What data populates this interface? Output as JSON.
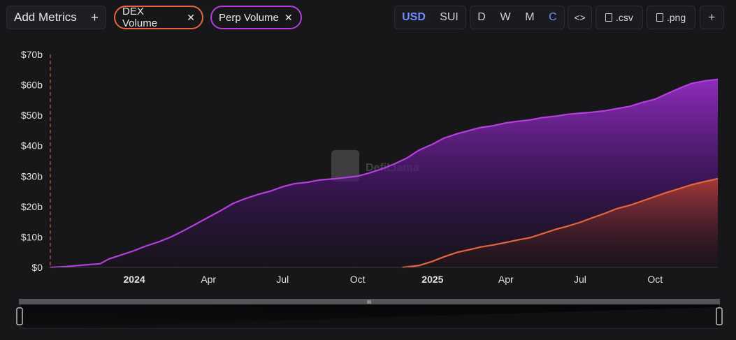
{
  "toolbar": {
    "add_metrics_label": "Add Metrics",
    "add_icon": "+",
    "pills": [
      {
        "label": "DEX Volume",
        "color": "#e5663d"
      },
      {
        "label": "Perp Volume",
        "color": "#b43fdc"
      }
    ],
    "pill_close_icon": "✕",
    "currency": [
      "USD",
      "SUI"
    ],
    "currency_selected": "USD",
    "granularity": [
      "D",
      "W",
      "M",
      "C"
    ],
    "granularity_selected": "C",
    "embed_icon": "<>",
    "csv_label": ".csv",
    "png_label": ".png",
    "more_icon": "+"
  },
  "watermark": "DefiLlama",
  "range_handle_icon": "III",
  "chart_data": {
    "type": "area",
    "title": "",
    "xlabel": "",
    "ylabel": "",
    "ylim": [
      0,
      70
    ],
    "y_ticks": [
      "$0",
      "$10b",
      "$20b",
      "$30b",
      "$40b",
      "$50b",
      "$60b",
      "$70b"
    ],
    "x_ticks": [
      {
        "date": "2024-01-01",
        "label": "2024",
        "bold": true
      },
      {
        "date": "2024-04-01",
        "label": "Apr",
        "bold": false
      },
      {
        "date": "2024-07-01",
        "label": "Jul",
        "bold": false
      },
      {
        "date": "2024-10-01",
        "label": "Oct",
        "bold": false
      },
      {
        "date": "2025-01-01",
        "label": "2025",
        "bold": true
      },
      {
        "date": "2025-04-01",
        "label": "Apr",
        "bold": false
      },
      {
        "date": "2025-07-01",
        "label": "Jul",
        "bold": false
      },
      {
        "date": "2025-10-01",
        "label": "Oct",
        "bold": false
      }
    ],
    "x_range": [
      "2023-09-20",
      "2025-12-17"
    ],
    "series": [
      {
        "name": "Perp Volume",
        "color": "#b43fdc",
        "points": [
          [
            "2023-09-20",
            0
          ],
          [
            "2023-10-10",
            0.3
          ],
          [
            "2023-11-01",
            0.8
          ],
          [
            "2023-11-20",
            1.2
          ],
          [
            "2023-12-01",
            2.8
          ],
          [
            "2023-12-15",
            4
          ],
          [
            "2024-01-01",
            5.5
          ],
          [
            "2024-01-15",
            7
          ],
          [
            "2024-02-01",
            8.5
          ],
          [
            "2024-02-15",
            10
          ],
          [
            "2024-03-01",
            12
          ],
          [
            "2024-03-15",
            14
          ],
          [
            "2024-04-01",
            16.5
          ],
          [
            "2024-04-15",
            18.5
          ],
          [
            "2024-05-01",
            21
          ],
          [
            "2024-05-15",
            22.5
          ],
          [
            "2024-06-01",
            24
          ],
          [
            "2024-06-15",
            25
          ],
          [
            "2024-07-01",
            26.5
          ],
          [
            "2024-07-15",
            27.5
          ],
          [
            "2024-08-01",
            28
          ],
          [
            "2024-08-15",
            28.7
          ],
          [
            "2024-09-01",
            29.1
          ],
          [
            "2024-09-15",
            29.5
          ],
          [
            "2024-10-01",
            30
          ],
          [
            "2024-10-15",
            31
          ],
          [
            "2024-11-01",
            32.5
          ],
          [
            "2024-11-15",
            34
          ],
          [
            "2024-12-01",
            36
          ],
          [
            "2024-12-15",
            38.5
          ],
          [
            "2025-01-01",
            40.5
          ],
          [
            "2025-01-15",
            42.5
          ],
          [
            "2025-02-01",
            44
          ],
          [
            "2025-02-15",
            45
          ],
          [
            "2025-03-01",
            46
          ],
          [
            "2025-03-15",
            46.5
          ],
          [
            "2025-04-01",
            47.5
          ],
          [
            "2025-04-15",
            48
          ],
          [
            "2025-05-01",
            48.5
          ],
          [
            "2025-05-15",
            49.2
          ],
          [
            "2025-06-01",
            49.7
          ],
          [
            "2025-06-15",
            50.3
          ],
          [
            "2025-07-01",
            50.7
          ],
          [
            "2025-07-15",
            51
          ],
          [
            "2025-08-01",
            51.5
          ],
          [
            "2025-08-15",
            52.2
          ],
          [
            "2025-09-01",
            53
          ],
          [
            "2025-09-15",
            54.2
          ],
          [
            "2025-10-01",
            55.3
          ],
          [
            "2025-10-15",
            57
          ],
          [
            "2025-11-01",
            59
          ],
          [
            "2025-11-15",
            60.5
          ],
          [
            "2025-12-01",
            61.3
          ],
          [
            "2025-12-17",
            61.8
          ]
        ]
      },
      {
        "name": "DEX Volume",
        "color": "#e5663d",
        "points": [
          [
            "2024-11-25",
            0
          ],
          [
            "2024-12-15",
            0.6
          ],
          [
            "2025-01-01",
            2
          ],
          [
            "2025-01-15",
            3.5
          ],
          [
            "2025-02-01",
            5
          ],
          [
            "2025-02-15",
            5.8
          ],
          [
            "2025-03-01",
            6.7
          ],
          [
            "2025-03-15",
            7.3
          ],
          [
            "2025-04-01",
            8.2
          ],
          [
            "2025-04-15",
            9
          ],
          [
            "2025-05-01",
            9.8
          ],
          [
            "2025-05-15",
            11
          ],
          [
            "2025-06-01",
            12.5
          ],
          [
            "2025-06-15",
            13.5
          ],
          [
            "2025-07-01",
            14.8
          ],
          [
            "2025-07-15",
            16.2
          ],
          [
            "2025-08-01",
            17.8
          ],
          [
            "2025-08-15",
            19.3
          ],
          [
            "2025-09-01",
            20.5
          ],
          [
            "2025-09-15",
            21.8
          ],
          [
            "2025-10-01",
            23.3
          ],
          [
            "2025-10-15",
            24.6
          ],
          [
            "2025-11-01",
            26
          ],
          [
            "2025-11-15",
            27.2
          ],
          [
            "2025-12-01",
            28.2
          ],
          [
            "2025-12-17",
            29.2
          ]
        ]
      }
    ]
  }
}
